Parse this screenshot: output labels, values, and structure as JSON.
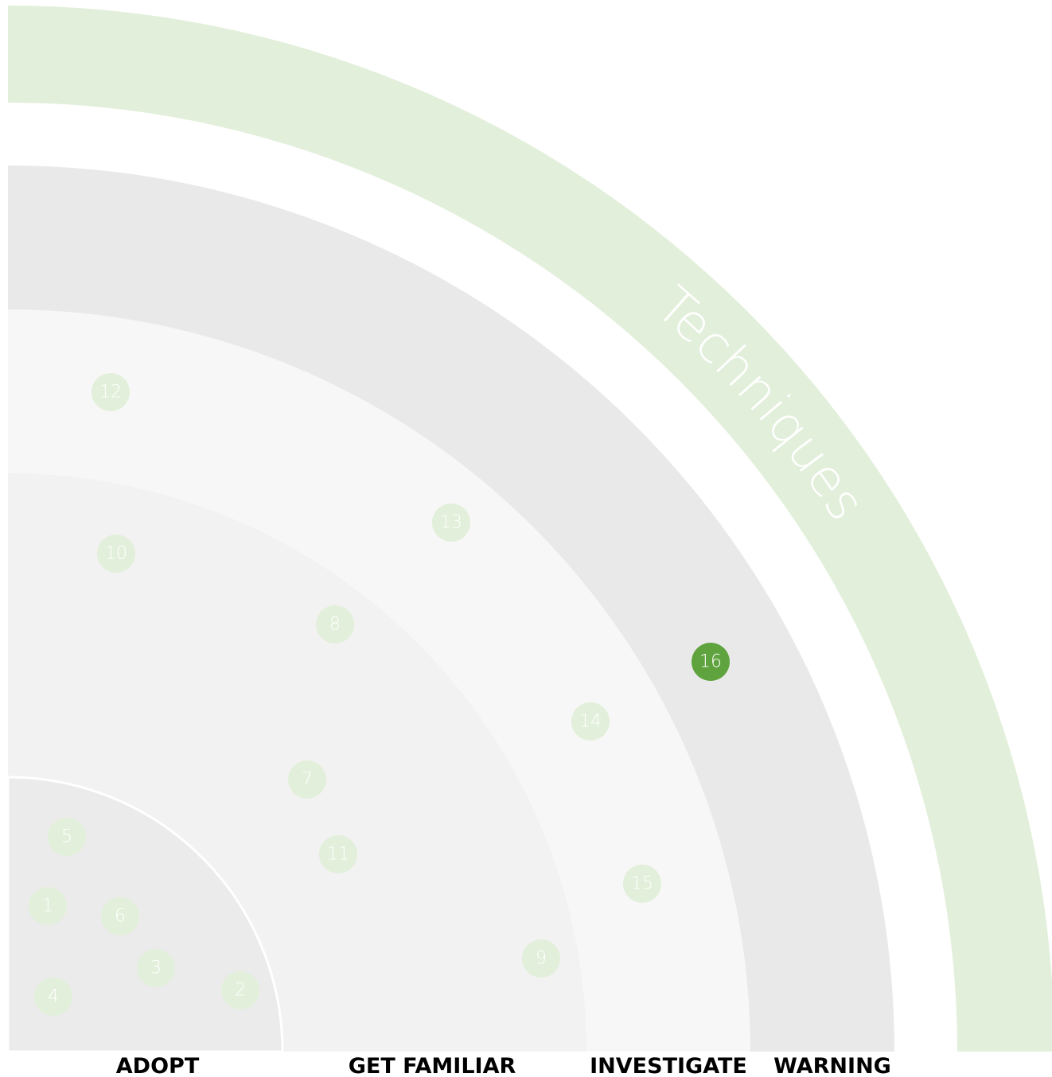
{
  "title": "Techniques",
  "rings": [
    {
      "label": "ADOPT",
      "color": "#ebebeb"
    },
    {
      "label": "GET FAMILIAR",
      "color": "#f2f2f2"
    },
    {
      "label": "INVESTIGATE",
      "color": "#f7f7f7"
    },
    {
      "label": "WARNING",
      "color": "#e9e9e9"
    }
  ],
  "band_color": "#e2efda",
  "blips": [
    {
      "label": "1",
      "color": "#e2efda"
    },
    {
      "label": "2",
      "color": "#e2efda"
    },
    {
      "label": "3",
      "color": "#e2efda"
    },
    {
      "label": "4",
      "color": "#e2efda"
    },
    {
      "label": "5",
      "color": "#e2efda"
    },
    {
      "label": "6",
      "color": "#e2efda"
    },
    {
      "label": "7",
      "color": "#e2efda"
    },
    {
      "label": "8",
      "color": "#e2efda"
    },
    {
      "label": "9",
      "color": "#e2efda"
    },
    {
      "label": "10",
      "color": "#e2efda"
    },
    {
      "label": "11",
      "color": "#e2efda"
    },
    {
      "label": "12",
      "color": "#e2efda"
    },
    {
      "label": "13",
      "color": "#e2efda"
    },
    {
      "label": "14",
      "color": "#e2efda"
    },
    {
      "label": "15",
      "color": "#e2efda"
    },
    {
      "label": "16",
      "color": "#5fa33e"
    }
  ]
}
